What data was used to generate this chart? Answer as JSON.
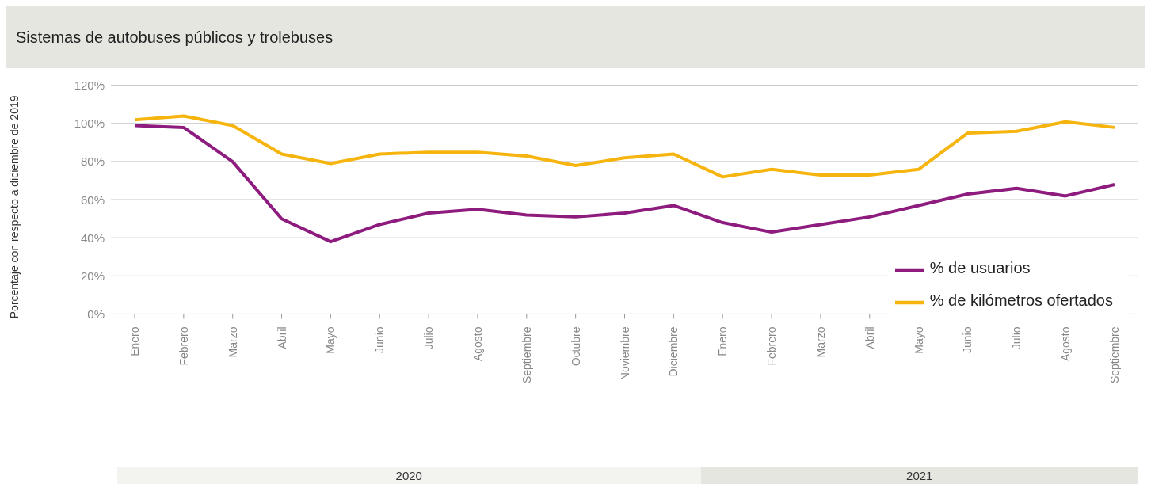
{
  "chart_data": {
    "type": "line",
    "title": "Sistemas de autobuses públicos y trolebuses",
    "ylabel": "Porcentaje con respecto a diciembre de 2019",
    "categories": [
      "Enero",
      "Febrero",
      "Marzo",
      "Abril",
      "Mayo",
      "Junio",
      "Julio",
      "Agosto",
      "Septiembre",
      "Octubre",
      "Noviembre",
      "Diciembre",
      "Enero",
      "Febrero",
      "Marzo",
      "Abril",
      "Mayo",
      "Junio",
      "Julio",
      "Agosto",
      "Septiembre"
    ],
    "series": [
      {
        "name": "% de usuarios",
        "color": "#8e1b7e",
        "values": [
          99,
          98,
          80,
          50,
          38,
          47,
          53,
          55,
          52,
          51,
          53,
          57,
          48,
          43,
          47,
          51,
          57,
          63,
          66,
          62,
          68
        ]
      },
      {
        "name": "% de kilómetros ofertados",
        "color": "#f6b40f",
        "values": [
          102,
          104,
          99,
          84,
          79,
          84,
          85,
          85,
          83,
          78,
          82,
          84,
          72,
          76,
          73,
          73,
          76,
          95,
          96,
          101,
          98
        ]
      }
    ],
    "ylim": [
      0,
      120
    ],
    "yticks": [
      {
        "value": 0,
        "label": "0%"
      },
      {
        "value": 20,
        "label": "20%"
      },
      {
        "value": 40,
        "label": "40%"
      },
      {
        "value": 60,
        "label": "60%"
      },
      {
        "value": 80,
        "label": "80%"
      },
      {
        "value": 100,
        "label": "100%"
      },
      {
        "value": 120,
        "label": "120%"
      }
    ],
    "grid": "y",
    "legend": "bottom right",
    "marker": "none",
    "line_style": "solid",
    "annotations": [
      "2020",
      "2021"
    ]
  }
}
